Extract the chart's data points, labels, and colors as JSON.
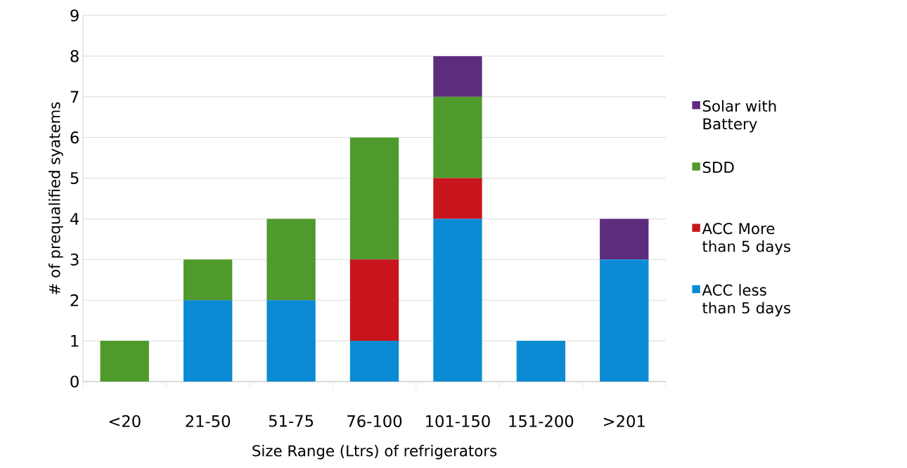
{
  "chart_data": {
    "type": "bar",
    "stacked": true,
    "xlabel": "Size Range (Ltrs) of refrigerators",
    "ylabel": "# of prequalified syatems",
    "categories": [
      "<20",
      "21-50",
      "51-75",
      "76-100",
      "101-150",
      "151-200",
      ">201"
    ],
    "series": [
      {
        "name": "ACC less than 5 days",
        "color": "#0b8bd3",
        "values": [
          0,
          2,
          2,
          1,
          4,
          1,
          3
        ]
      },
      {
        "name": "ACC More than 5 days",
        "color": "#c8141c",
        "values": [
          0,
          0,
          0,
          2,
          1,
          0,
          0
        ]
      },
      {
        "name": "SDD",
        "color": "#4f9a2c",
        "values": [
          1,
          1,
          2,
          3,
          2,
          0,
          0
        ]
      },
      {
        "name": "Solar with Battery",
        "color": "#5e2c7c",
        "values": [
          0,
          0,
          0,
          0,
          1,
          0,
          1
        ]
      }
    ],
    "ylim": [
      0,
      9
    ],
    "yticks": [
      0,
      1,
      2,
      3,
      4,
      5,
      6,
      7,
      8,
      9
    ],
    "grid": "y",
    "legend": "right"
  }
}
